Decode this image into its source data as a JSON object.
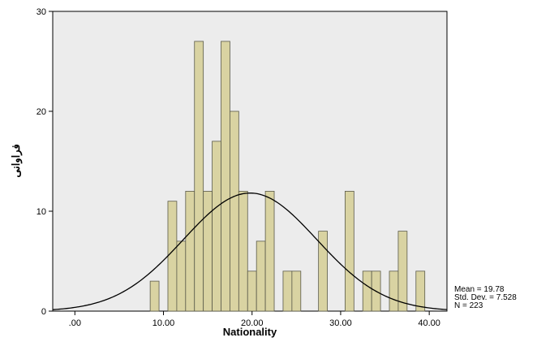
{
  "chart_data": {
    "type": "bar",
    "subtype": "histogram-with-normal-curve",
    "xlabel": "Nationality",
    "ylabel": "فراوانی",
    "xlim": [
      -2.5,
      42
    ],
    "ylim": [
      0,
      30
    ],
    "x_ticks": [
      {
        "value": 0,
        "label": ".00"
      },
      {
        "value": 10,
        "label": "10.00"
      },
      {
        "value": 20,
        "label": "20.00"
      },
      {
        "value": 30,
        "label": "30.00"
      },
      {
        "value": 40,
        "label": "40.00"
      }
    ],
    "y_ticks": [
      0,
      10,
      20,
      30
    ],
    "bin_width": 1,
    "bars": [
      {
        "x": 9,
        "count": 3
      },
      {
        "x": 11,
        "count": 11
      },
      {
        "x": 12,
        "count": 7
      },
      {
        "x": 13,
        "count": 12
      },
      {
        "x": 14,
        "count": 27
      },
      {
        "x": 15,
        "count": 12
      },
      {
        "x": 16,
        "count": 17
      },
      {
        "x": 17,
        "count": 27
      },
      {
        "x": 18,
        "count": 20
      },
      {
        "x": 19,
        "count": 12
      },
      {
        "x": 20,
        "count": 4
      },
      {
        "x": 21,
        "count": 7
      },
      {
        "x": 22,
        "count": 12
      },
      {
        "x": 24,
        "count": 4
      },
      {
        "x": 25,
        "count": 4
      },
      {
        "x": 28,
        "count": 8
      },
      {
        "x": 31,
        "count": 12
      },
      {
        "x": 33,
        "count": 4
      },
      {
        "x": 34,
        "count": 4
      },
      {
        "x": 36,
        "count": 4
      },
      {
        "x": 37,
        "count": 8
      },
      {
        "x": 39,
        "count": 4
      }
    ],
    "normal_curve": {
      "mean": 19.78,
      "std_dev": 7.528,
      "n": 223
    },
    "stats_lines": [
      "Mean = 19.78",
      "Std. Dev. = 7.528",
      "N = 223"
    ],
    "colors": {
      "plot_background": "#ececec",
      "bar_fill": "#d9d3a2",
      "bar_stroke": "#5a5a4a",
      "curve": "#000000"
    },
    "grid": false,
    "legend": "none"
  }
}
